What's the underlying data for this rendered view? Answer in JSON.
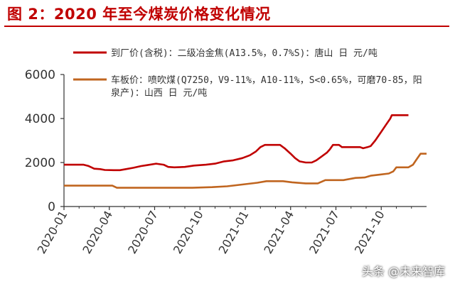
{
  "header": {
    "title": "图 2：2020 年至今煤炭价格变化情况"
  },
  "watermark": "头条 @未来智库",
  "colors": {
    "title": "#c00000",
    "series1": "#c00000",
    "series2": "#c0651f",
    "axis": "#333333"
  },
  "chart_data": {
    "type": "line",
    "title": "图 2：2020 年至今煤炭价格变化情况",
    "xlabel": "",
    "ylabel": "",
    "ylim": [
      0,
      6000
    ],
    "yticks": [
      0,
      2000,
      4000,
      6000
    ],
    "xlim": [
      "2020-01",
      "2021-12"
    ],
    "xtick_labels": [
      "2020-01",
      "2020-04",
      "2020-07",
      "2020-10",
      "2021-01",
      "2021-04",
      "2021-07",
      "2021-10"
    ],
    "legend": {
      "placement": "top"
    },
    "series": [
      {
        "name": "到厂价(含税)：二级冶金焦(A13.5%，0.7%S)：唐山 日 元/吨",
        "color": "#c00000",
        "points": [
          [
            0,
            1900
          ],
          [
            1.3,
            1900
          ],
          [
            1.6,
            1850
          ],
          [
            2.0,
            1720
          ],
          [
            2.4,
            1700
          ],
          [
            2.7,
            1660
          ],
          [
            3.3,
            1650
          ],
          [
            3.7,
            1650
          ],
          [
            4.1,
            1700
          ],
          [
            4.6,
            1760
          ],
          [
            5.1,
            1840
          ],
          [
            5.5,
            1880
          ],
          [
            6.1,
            1950
          ],
          [
            6.6,
            1900
          ],
          [
            6.9,
            1800
          ],
          [
            7.3,
            1780
          ],
          [
            8.0,
            1800
          ],
          [
            8.6,
            1860
          ],
          [
            9.4,
            1900
          ],
          [
            10.0,
            1950
          ],
          [
            10.6,
            2050
          ],
          [
            11.2,
            2100
          ],
          [
            11.8,
            2200
          ],
          [
            12.3,
            2330
          ],
          [
            12.7,
            2500
          ],
          [
            13.0,
            2700
          ],
          [
            13.3,
            2800
          ],
          [
            13.6,
            2800
          ],
          [
            14.3,
            2800
          ],
          [
            14.6,
            2650
          ],
          [
            15.0,
            2400
          ],
          [
            15.3,
            2200
          ],
          [
            15.6,
            2050
          ],
          [
            16.0,
            2000
          ],
          [
            16.4,
            2000
          ],
          [
            16.7,
            2100
          ],
          [
            17.0,
            2250
          ],
          [
            17.4,
            2450
          ],
          [
            17.6,
            2600
          ],
          [
            17.8,
            2800
          ],
          [
            18.2,
            2800
          ],
          [
            18.4,
            2700
          ],
          [
            19.0,
            2700
          ],
          [
            19.6,
            2700
          ],
          [
            19.8,
            2650
          ],
          [
            20.1,
            2700
          ],
          [
            20.3,
            2750
          ],
          [
            20.6,
            3000
          ],
          [
            21.0,
            3400
          ],
          [
            21.3,
            3700
          ],
          [
            21.6,
            4000
          ],
          [
            21.7,
            4150
          ],
          [
            22.0,
            4150
          ],
          [
            22.8,
            4150
          ]
        ]
      },
      {
        "name": "车板价：喷吹煤(Q7250，V9-11%，A10-11%，S<0.65%，可磨70-85，阳泉产)：山西 日 元/吨",
        "color": "#c0651f",
        "points": [
          [
            0,
            950
          ],
          [
            3.2,
            950
          ],
          [
            3.5,
            850
          ],
          [
            8.5,
            850
          ],
          [
            9.8,
            880
          ],
          [
            10.8,
            920
          ],
          [
            11.8,
            1000
          ],
          [
            12.8,
            1080
          ],
          [
            13.4,
            1150
          ],
          [
            14.5,
            1150
          ],
          [
            15.1,
            1100
          ],
          [
            16.0,
            1050
          ],
          [
            16.8,
            1050
          ],
          [
            17.3,
            1200
          ],
          [
            18.5,
            1200
          ],
          [
            19.3,
            1300
          ],
          [
            19.9,
            1320
          ],
          [
            20.3,
            1400
          ],
          [
            20.9,
            1450
          ],
          [
            21.5,
            1500
          ],
          [
            21.8,
            1600
          ],
          [
            22.0,
            1780
          ],
          [
            22.8,
            1780
          ],
          [
            23.1,
            1900
          ],
          [
            23.3,
            2100
          ],
          [
            23.6,
            2400
          ],
          [
            24.0,
            2400
          ]
        ]
      }
    ]
  }
}
